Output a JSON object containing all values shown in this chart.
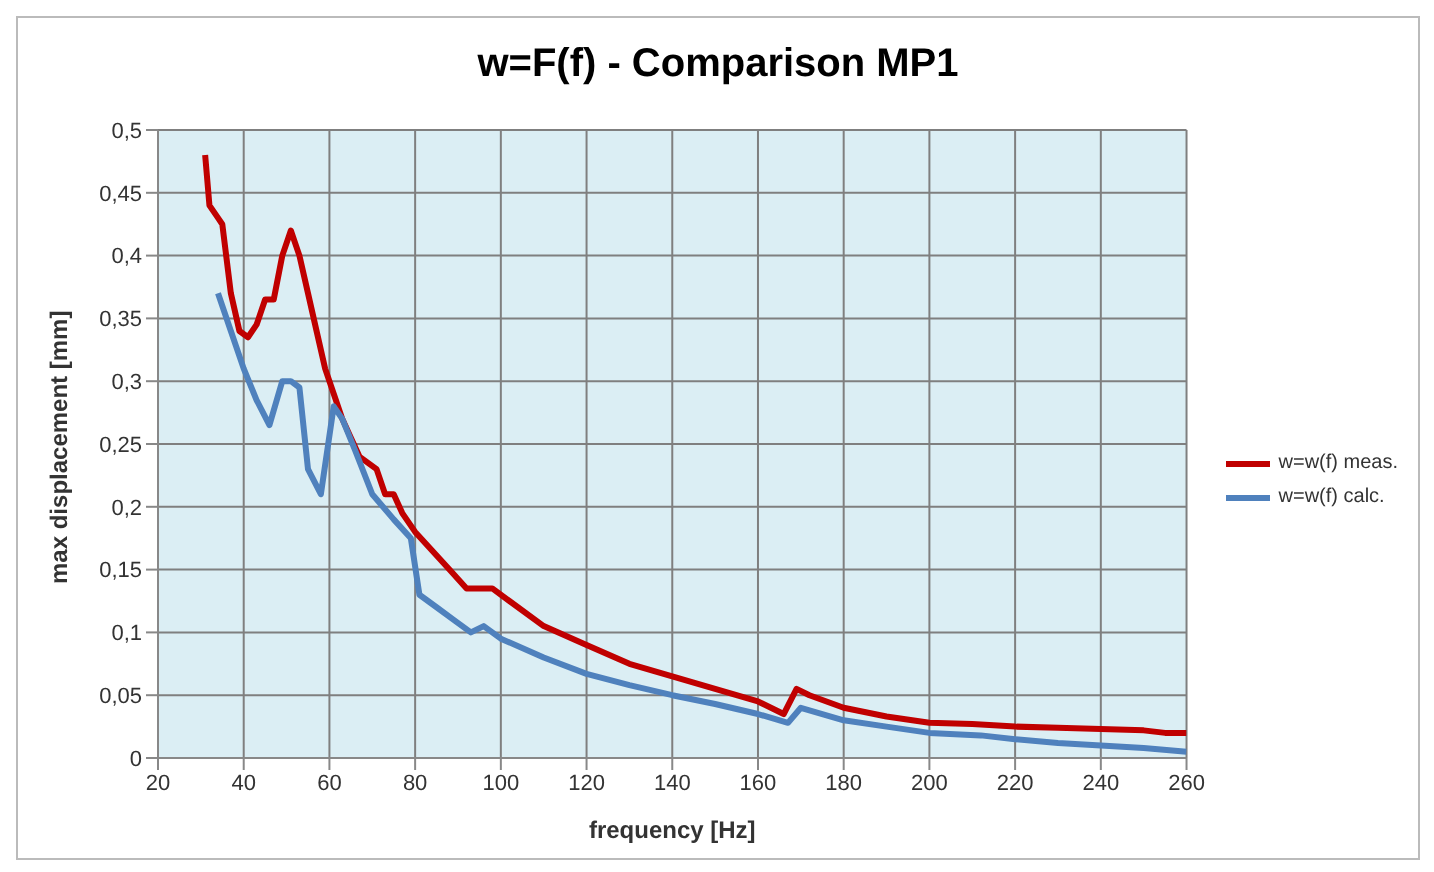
{
  "chart_data": {
    "type": "line",
    "title": "w=F(f) - Comparison MP1",
    "xlabel": "frequency [Hz]",
    "ylabel": "max displacement [mm]",
    "xlim": [
      20,
      260
    ],
    "xticks": [
      20,
      40,
      60,
      80,
      100,
      120,
      140,
      160,
      180,
      200,
      220,
      240,
      260
    ],
    "ylim": [
      0,
      0.5
    ],
    "yticks": [
      {
        "value": 0,
        "label": "0"
      },
      {
        "value": 0.05,
        "label": "0,05"
      },
      {
        "value": 0.1,
        "label": "0,1"
      },
      {
        "value": 0.15,
        "label": "0,15"
      },
      {
        "value": 0.2,
        "label": "0,2"
      },
      {
        "value": 0.25,
        "label": "0,25"
      },
      {
        "value": 0.3,
        "label": "0,3"
      },
      {
        "value": 0.35,
        "label": "0,35"
      },
      {
        "value": 0.4,
        "label": "0,4"
      },
      {
        "value": 0.45,
        "label": "0,45"
      },
      {
        "value": 0.5,
        "label": "0,5"
      }
    ],
    "grid": true,
    "legend": "right",
    "marker": "none",
    "line_style": "solid",
    "series": [
      {
        "name": "w=w(f) meas.",
        "color": "#c00000",
        "x": [
          31,
          32,
          34,
          35,
          37,
          39,
          41,
          43,
          45,
          47,
          49,
          51,
          53,
          55,
          57,
          59,
          61,
          63,
          65,
          67,
          69,
          71,
          73,
          75,
          77,
          80,
          84,
          88,
          92,
          95,
          98,
          102,
          110,
          120,
          130,
          140,
          150,
          160,
          166,
          169,
          172,
          180,
          190,
          200,
          210,
          220,
          230,
          240,
          250,
          255,
          260
        ],
        "values": [
          0.48,
          0.44,
          0.43,
          0.425,
          0.37,
          0.34,
          0.335,
          0.345,
          0.365,
          0.365,
          0.4,
          0.42,
          0.4,
          0.37,
          0.34,
          0.31,
          0.29,
          0.27,
          0.255,
          0.24,
          0.235,
          0.23,
          0.21,
          0.21,
          0.195,
          0.18,
          0.165,
          0.15,
          0.135,
          0.135,
          0.135,
          0.125,
          0.105,
          0.09,
          0.075,
          0.065,
          0.055,
          0.045,
          0.035,
          0.055,
          0.05,
          0.04,
          0.033,
          0.028,
          0.027,
          0.025,
          0.024,
          0.023,
          0.022,
          0.02,
          0.02
        ]
      },
      {
        "name": "w=w(f) calc.",
        "color": "#4f81bd",
        "x": [
          34,
          37,
          40,
          43,
          46,
          49,
          51,
          53,
          55,
          58,
          61,
          63,
          66,
          70,
          75,
          79,
          81,
          85,
          89,
          93,
          96,
          100,
          110,
          120,
          130,
          140,
          150,
          160,
          167,
          170,
          175,
          180,
          190,
          200,
          212,
          220,
          230,
          240,
          250,
          260
        ],
        "values": [
          0.37,
          0.34,
          0.31,
          0.285,
          0.265,
          0.3,
          0.3,
          0.295,
          0.23,
          0.21,
          0.28,
          0.27,
          0.245,
          0.21,
          0.19,
          0.175,
          0.13,
          0.12,
          0.11,
          0.1,
          0.105,
          0.095,
          0.08,
          0.067,
          0.058,
          0.05,
          0.043,
          0.035,
          0.028,
          0.04,
          0.035,
          0.03,
          0.025,
          0.02,
          0.018,
          0.015,
          0.012,
          0.01,
          0.008,
          0.005
        ]
      }
    ]
  }
}
